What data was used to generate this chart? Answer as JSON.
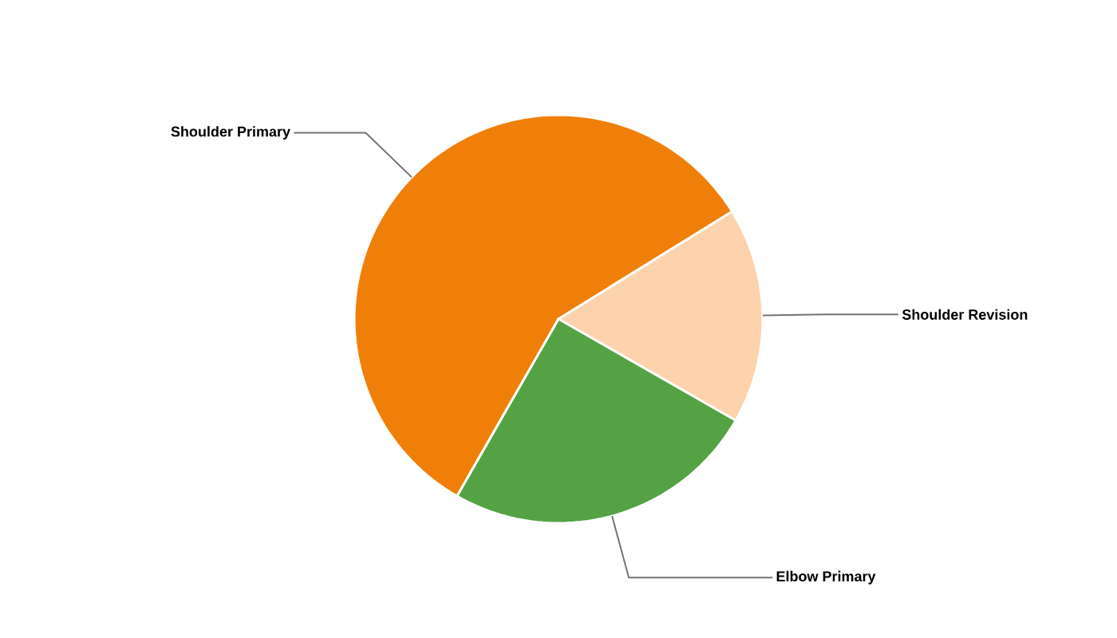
{
  "chart_data": {
    "type": "pie",
    "categories": [
      "Shoulder Primary",
      "Shoulder Revision",
      "Elbow Primary"
    ],
    "values": [
      57.9,
      17.1,
      25.0
    ],
    "colors": [
      "#f07f09",
      "#fcd3ad",
      "#54a244"
    ]
  }
}
